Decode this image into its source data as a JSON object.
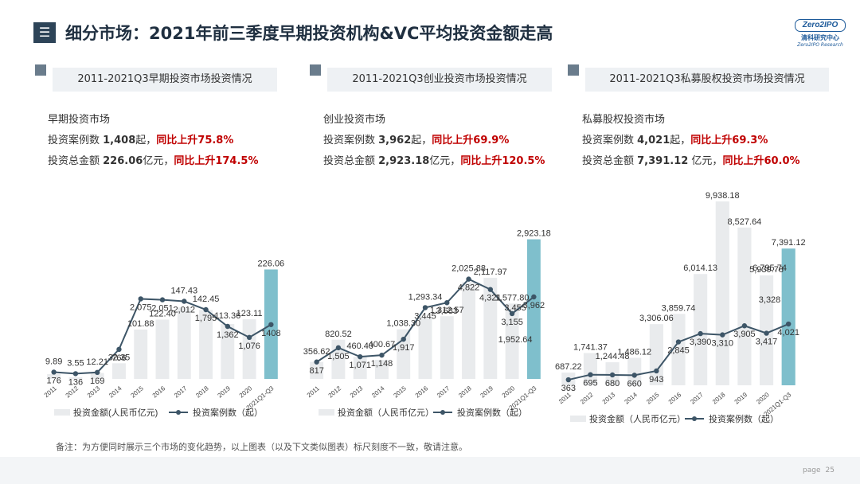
{
  "title": "细分市场：2021年前三季度早期投资机构&VC平均投资金额走高",
  "menu_icon": "☰",
  "logo": {
    "top": "Zero2IPO",
    "cn": "清科研究中心",
    "en": "Zero2IPO Research"
  },
  "sections": [
    {
      "header": "2011-2021Q3早期投资市场投资情况",
      "market": "早期投资市场",
      "line1_prefix": "投资案例数 ",
      "line1_value": "1,408",
      "line1_unit": "起，",
      "line1_change": "同比上升75.8%",
      "line2_prefix": "投资总金额 ",
      "line2_value": "226.06",
      "line2_unit": "亿元，",
      "line2_change": "同比上升174.5%"
    },
    {
      "header": "2011-2021Q3创业投资市场投资情况",
      "market": "创业投资市场",
      "line1_prefix": "投资案例数 ",
      "line1_value": "3,962",
      "line1_unit": "起，",
      "line1_change": "同比上升69.9%",
      "line2_prefix": "投资总金额 ",
      "line2_value": "2,923.18",
      "line2_unit": "亿元，",
      "line2_change": "同比上升120.5%"
    },
    {
      "header": "2011-2021Q3私募股权投资市场投资情况",
      "market": "私募股权投资市场",
      "line1_prefix": "投资案例数 ",
      "line1_value": "4,021",
      "line1_unit": "起，",
      "line1_change": "同比上升69.3%",
      "line2_prefix": "投资总金额 ",
      "line2_value": "7,391.12",
      "line2_unit": " 亿元，",
      "line2_change": "同比上升60.0%"
    }
  ],
  "chart_data": [
    {
      "type": "bar",
      "categories": [
        "2011",
        "2012",
        "2013",
        "2014",
        "2015",
        "2016",
        "2017",
        "2018",
        "2019",
        "2020",
        "2021Q1-Q3"
      ],
      "series": [
        {
          "name": "投资金额(人民币亿元)",
          "type": "bar",
          "values": [
            9.89,
            3.55,
            12.21,
            32.35,
            101.88,
            122.4,
            147.43,
            142.45,
            113.36,
            123.11,
            226.06
          ],
          "labels": [
            "9.89",
            "3.55",
            "12.21",
            "32.35",
            "101.88",
            "122.40",
            "147.43",
            "142.45",
            "113.36",
            "123.11",
            "226.06"
          ]
        },
        {
          "name": "投资案例数（起）",
          "type": "line",
          "values": [
            176,
            136,
            169,
            766,
            2075,
            2051,
            2012,
            1795,
            1362,
            1076,
            1408
          ],
          "labels": [
            "176",
            "136",
            "169",
            "766",
            "2,075",
            "2,051",
            "2,012",
            "1,795",
            "1,362",
            "1,076",
            "1408"
          ]
        }
      ],
      "legend_bar": "投资金额(人民币亿元)",
      "legend_line": "投资案例数（起）",
      "colors": {
        "bar": "#e9ebed",
        "highlight": "#7fbfcc",
        "line": "#3d5567"
      },
      "bar_max": 240,
      "line_max": 2600
    },
    {
      "type": "bar",
      "categories": [
        "2011",
        "2012",
        "2013",
        "2014",
        "2015",
        "2016",
        "2017",
        "2018",
        "2019",
        "2020",
        "2021Q1-Q3"
      ],
      "series": [
        {
          "name": "投资金额（人民币亿元）",
          "type": "bar",
          "values": [
            356.62,
            820.52,
            460.4,
            400.67,
            1038.3,
            1293.34,
            1312.57,
            2025.88,
            2117.97,
            1577.8,
            2923.18
          ],
          "labels": [
            "356.62",
            "820.52",
            "460.40",
            "400.67",
            "1,038.30",
            "1,293.34",
            "1,312.57",
            "2,025.88",
            "2,117.97",
            "1,577.80",
            "2,923.18"
          ]
        },
        {
          "name": "投资案例数（起）",
          "type": "line",
          "values": [
            817,
            1505,
            1071,
            1148,
            1917,
            3445,
            3683,
            4822,
            4321,
            3155,
            3962
          ],
          "labels": [
            "817",
            "1,505",
            "1,071",
            "1,148",
            "1,917",
            "3,445",
            "3,683",
            "4,822",
            "4,321",
            "3,155",
            "3,962"
          ]
        }
      ],
      "extra_labels": [
        "3,455",
        "1,952.64"
      ],
      "legend_bar": "投资金额（人民币亿元）",
      "legend_line": "投资案例数（起）",
      "colors": {
        "bar": "#e9ebed",
        "highlight": "#7fbfcc",
        "line": "#3d5567"
      },
      "bar_max": 3100,
      "line_max": 6000
    },
    {
      "type": "bar",
      "categories": [
        "2011",
        "2012",
        "2013",
        "2014",
        "2015",
        "2016",
        "2017",
        "2018",
        "2019",
        "2020",
        "2021Q1-Q3"
      ],
      "series": [
        {
          "name": "投资金额（人民币亿元）",
          "type": "bar",
          "values": [
            687.22,
            1741.37,
            1244.48,
            1486.12,
            3306.06,
            3859.74,
            6014.13,
            9938.18,
            8527.64,
            5939.78,
            7391.12
          ],
          "labels": [
            "687.22",
            "1,741.37",
            "1,244.48",
            "1,486.12",
            "3,306.06",
            "3,859.74",
            "6,014.13",
            "9,938.18",
            "8,527.64",
            "5,939.78",
            "7,391.12"
          ]
        },
        {
          "name": "投资案例数（起）",
          "type": "line",
          "values": [
            363,
            695,
            680,
            660,
            943,
            2845,
            3390,
            3310,
            3905,
            3417,
            4021
          ],
          "labels": [
            "363",
            "695",
            "680",
            "660",
            "943",
            "2,845",
            "3,390",
            "3,310",
            "3,905",
            "3,417",
            "4,021"
          ]
        }
      ],
      "extra_labels": [
        "6,795.74",
        "3,328"
      ],
      "legend_bar": "投资金额（人民币亿元）",
      "legend_line": "投资案例数（起）",
      "colors": {
        "bar": "#e9ebed",
        "highlight": "#7fbfcc",
        "line": "#3d5567"
      },
      "bar_max": 10500,
      "line_max": 7000
    }
  ],
  "note": "备注：为方便同时展示三个市场的变化趋势，以上图表（以及下文类似图表）标尺刻度不一致，敬请注意。",
  "page": {
    "label": "page",
    "number": "25"
  }
}
